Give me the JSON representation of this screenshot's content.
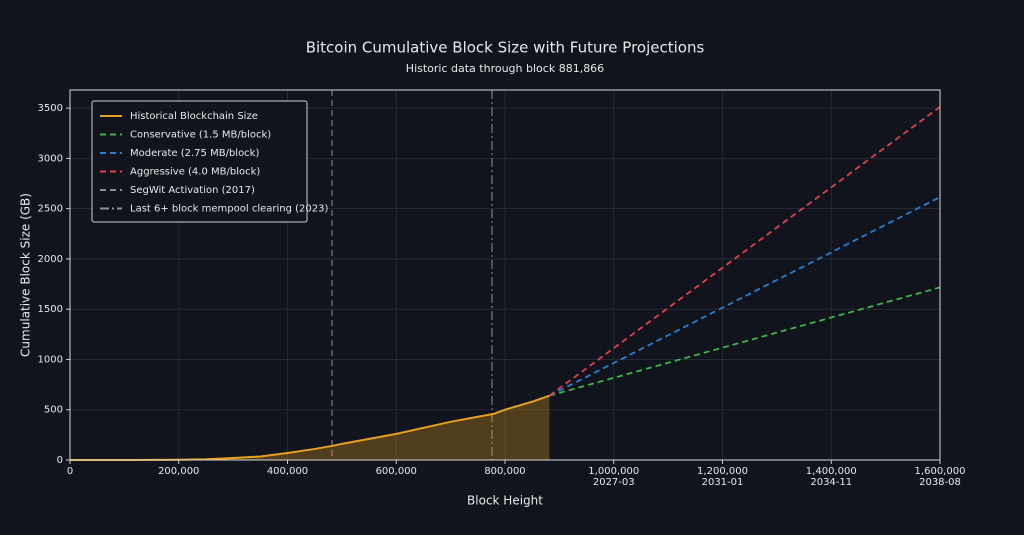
{
  "chart_data": {
    "type": "line",
    "title": "Bitcoin Cumulative Block Size with Future Projections",
    "subtitle": "Historic data through block 881,866",
    "x_label": "Block Height",
    "y_label": "Cumulative Block Size (GB)",
    "xlim": [
      0,
      1600000
    ],
    "ylim": [
      0,
      3680
    ],
    "xticks": [
      0,
      {
        "value": 200000,
        "label": "200,000"
      },
      {
        "value": 400000,
        "label": "400,000"
      },
      {
        "value": 600000,
        "label": "600,000"
      },
      {
        "value": 800000,
        "label": "800,000"
      },
      {
        "value": 1000000,
        "label": "1,000,000",
        "date": "2027-03"
      },
      {
        "value": 1200000,
        "label": "1,200,000",
        "date": "2031-01"
      },
      {
        "value": 1400000,
        "label": "1,400,000",
        "date": "2034-11"
      },
      {
        "value": 1600000,
        "label": "1,600,000",
        "date": "2038-08"
      }
    ],
    "yticks": [
      0,
      500,
      1000,
      1500,
      2000,
      2500,
      3000,
      3500
    ],
    "grid": true,
    "legend": "upper left",
    "series": [
      {
        "name": "Historical Blockchain Size",
        "color": "#e6a01c",
        "style": "solid",
        "fill": true,
        "x": [
          0,
          100000,
          200000,
          250000,
          300000,
          350000,
          400000,
          450000,
          481824,
          500000,
          550000,
          600000,
          650000,
          700000,
          750000,
          780000,
          800000,
          850000,
          881866
        ],
        "values": [
          0,
          0,
          2,
          8,
          20,
          35,
          70,
          110,
          140,
          160,
          210,
          260,
          320,
          380,
          430,
          460,
          500,
          580,
          640
        ]
      },
      {
        "name": "Conservative (1.5 MB/block)",
        "color": "#3cb54a",
        "style": "dashed",
        "x": [
          881866,
          1600000
        ],
        "values": [
          640,
          1717
        ]
      },
      {
        "name": "Moderate (2.75 MB/block)",
        "color": "#2a7fd0",
        "style": "dashed",
        "x": [
          881866,
          1600000
        ],
        "values": [
          640,
          2615
        ]
      },
      {
        "name": "Aggressive (4.0 MB/block)",
        "color": "#e0404e",
        "style": "dashed",
        "x": [
          881866,
          1600000
        ],
        "values": [
          640,
          3512
        ]
      }
    ],
    "vlines": [
      {
        "name": "SegWit Activation (2017)",
        "x": 481824,
        "color": "#8a8f9c",
        "style": "dashed"
      },
      {
        "name": "Last 6+ block mempool clearing (2023)",
        "x": 776000,
        "color": "#8a8f9c",
        "style": "dashdot"
      }
    ]
  }
}
